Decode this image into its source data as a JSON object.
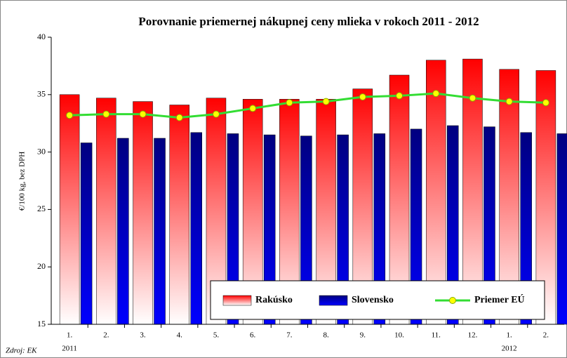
{
  "chart_data": {
    "type": "bar_line",
    "title": "Porovnanie priemernej nákupnej ceny mlieka v rokoch 2011 - 2012",
    "y_label": "€/100 kg, bez DPH",
    "source": "Zdroj: EK",
    "categories": [
      "1.",
      "2.",
      "3.",
      "4.",
      "5.",
      "6.",
      "7.",
      "8.",
      "9.",
      "10.",
      "11.",
      "12.",
      "1.",
      "2."
    ],
    "category_years": [
      "2011",
      null,
      null,
      null,
      null,
      null,
      null,
      null,
      null,
      null,
      null,
      null,
      "2012",
      null
    ],
    "series": [
      {
        "name": "Rakúsko",
        "kind": "bar",
        "color": "#ff0000",
        "values": [
          35.0,
          34.7,
          34.4,
          34.1,
          34.7,
          34.6,
          34.6,
          34.6,
          35.5,
          36.7,
          38.0,
          38.1,
          37.2,
          37.1
        ]
      },
      {
        "name": "Slovensko",
        "kind": "bar",
        "color": "#000080",
        "values": [
          30.8,
          31.2,
          31.2,
          31.7,
          31.6,
          31.5,
          31.4,
          31.5,
          31.6,
          32.0,
          32.3,
          32.2,
          31.7,
          31.6
        ]
      },
      {
        "name": "Priemer EÚ",
        "kind": "line",
        "color": "#33dd33",
        "marker_color": "#ffff00",
        "values": [
          33.2,
          33.3,
          33.3,
          33.0,
          33.3,
          33.8,
          34.3,
          34.4,
          34.8,
          34.9,
          35.1,
          34.7,
          34.4,
          34.3
        ]
      }
    ],
    "ylim": [
      15,
      40
    ],
    "yticks": [
      15,
      20,
      25,
      30,
      35,
      40
    ],
    "grid": false
  }
}
